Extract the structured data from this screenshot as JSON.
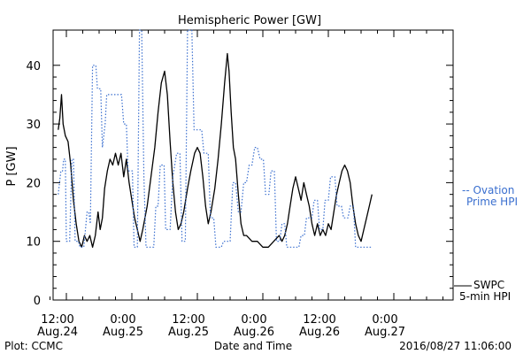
{
  "chart_data": {
    "type": "line",
    "title": "Hemispheric Power [GW]",
    "ylabel": "P [GW]",
    "xlabel": "Date and Time",
    "ylim": [
      0,
      46
    ],
    "yticks": [
      0,
      10,
      20,
      30,
      40
    ],
    "xlim": [
      10.5,
      66
    ],
    "xticks": [
      {
        "x": 12,
        "line1": "12:00",
        "line2": "Aug.24"
      },
      {
        "x": 24,
        "line1": "0:00",
        "line2": "Aug.25"
      },
      {
        "x": 36,
        "line1": "12:00",
        "line2": "Aug.25"
      },
      {
        "x": 48,
        "line1": "0:00",
        "line2": "Aug.26"
      },
      {
        "x": 60,
        "line1": "12:00",
        "line2": "Aug.26"
      },
      {
        "x": 72,
        "line1": "0:00",
        "line2": "Aug.27"
      }
    ],
    "legend": {
      "ovation_line1": "-- Ovation",
      "ovation_line2": "Prime HPI",
      "swpc_line1": "SWPC",
      "swpc_line2": "5-min HPI"
    },
    "footer": {
      "left": "Plot: CCMC",
      "center": "Date and Time",
      "right": "2016/08/27 11:06:00"
    },
    "series": [
      {
        "name": "SWPC 5-min HPI",
        "color": "#000000",
        "style": "solid",
        "points": [
          [
            10.5,
            29
          ],
          [
            10.8,
            31
          ],
          [
            11.1,
            35
          ],
          [
            11.4,
            30
          ],
          [
            11.8,
            28
          ],
          [
            12.3,
            27
          ],
          [
            12.8,
            23
          ],
          [
            13.3,
            17
          ],
          [
            13.8,
            13
          ],
          [
            14.3,
            10
          ],
          [
            14.8,
            9
          ],
          [
            15.3,
            11
          ],
          [
            15.8,
            10
          ],
          [
            16.3,
            11
          ],
          [
            16.8,
            9
          ],
          [
            17.3,
            11
          ],
          [
            17.8,
            15
          ],
          [
            18.2,
            12
          ],
          [
            18.6,
            14
          ],
          [
            19,
            19
          ],
          [
            19.5,
            22
          ],
          [
            20,
            24
          ],
          [
            20.5,
            23
          ],
          [
            21,
            25
          ],
          [
            21.5,
            23
          ],
          [
            22,
            25
          ],
          [
            22.5,
            21
          ],
          [
            23,
            24
          ],
          [
            23.5,
            20
          ],
          [
            24,
            17
          ],
          [
            24.5,
            14
          ],
          [
            25,
            12
          ],
          [
            25.5,
            10
          ],
          [
            26,
            12
          ],
          [
            26.8,
            16
          ],
          [
            27.5,
            21
          ],
          [
            28.2,
            26
          ],
          [
            28.8,
            32
          ],
          [
            29.4,
            37
          ],
          [
            30,
            39
          ],
          [
            30.5,
            35
          ],
          [
            31,
            27
          ],
          [
            31.5,
            20
          ],
          [
            32,
            15
          ],
          [
            32.5,
            12
          ],
          [
            33,
            13
          ],
          [
            33.5,
            15
          ],
          [
            34.2,
            19
          ],
          [
            34.8,
            22
          ],
          [
            35.5,
            25
          ],
          [
            36,
            26
          ],
          [
            36.5,
            25
          ],
          [
            37,
            21
          ],
          [
            37.5,
            16
          ],
          [
            38,
            13
          ],
          [
            38.5,
            15
          ],
          [
            39.2,
            19
          ],
          [
            39.8,
            24
          ],
          [
            40.4,
            30
          ],
          [
            41,
            37
          ],
          [
            41.5,
            42
          ],
          [
            41.8,
            39
          ],
          [
            42.2,
            32
          ],
          [
            42.6,
            26
          ],
          [
            43,
            24
          ],
          [
            43.5,
            18
          ],
          [
            44,
            13
          ],
          [
            44.5,
            11
          ],
          [
            45,
            11
          ],
          [
            46,
            10
          ],
          [
            47,
            10
          ],
          [
            48,
            9
          ],
          [
            49,
            9
          ],
          [
            50,
            10
          ],
          [
            51,
            11
          ],
          [
            51.5,
            10
          ],
          [
            52,
            11
          ],
          [
            52.5,
            13
          ],
          [
            53,
            16
          ],
          [
            53.5,
            19
          ],
          [
            54,
            21
          ],
          [
            54.5,
            19
          ],
          [
            55,
            17
          ],
          [
            55.5,
            20
          ],
          [
            56,
            18
          ],
          [
            56.5,
            16
          ],
          [
            57,
            13
          ],
          [
            57.5,
            11
          ],
          [
            58,
            13
          ],
          [
            58.5,
            11
          ],
          [
            59,
            12
          ],
          [
            59.5,
            11
          ],
          [
            60,
            13
          ],
          [
            60.5,
            12
          ],
          [
            61,
            15
          ],
          [
            61.5,
            18
          ],
          [
            62,
            20
          ],
          [
            62.5,
            22
          ],
          [
            63,
            23
          ],
          [
            63.5,
            22
          ],
          [
            64,
            20
          ],
          [
            64.5,
            16
          ],
          [
            65,
            13
          ],
          [
            65.5,
            11
          ],
          [
            66,
            10
          ],
          [
            66.5,
            12
          ],
          [
            67,
            14
          ],
          [
            67.5,
            16
          ],
          [
            68,
            18
          ]
        ]
      },
      {
        "name": "Ovation Prime HPI",
        "color": "#3a6fcf",
        "style": "dotted",
        "points": [
          [
            10.5,
            18
          ],
          [
            11,
            22
          ],
          [
            11.3,
            22
          ],
          [
            11.5,
            24
          ],
          [
            11.8,
            24
          ],
          [
            12,
            10
          ],
          [
            12.6,
            10
          ],
          [
            13,
            24
          ],
          [
            13.3,
            24
          ],
          [
            13.6,
            10
          ],
          [
            14.2,
            10
          ],
          [
            14.5,
            9
          ],
          [
            15.2,
            9
          ],
          [
            15.8,
            15
          ],
          [
            16.1,
            15
          ],
          [
            16.4,
            13
          ],
          [
            16.8,
            40
          ],
          [
            17.4,
            40
          ],
          [
            17.7,
            36
          ],
          [
            18.3,
            36
          ],
          [
            18.6,
            26
          ],
          [
            19.1,
            30
          ],
          [
            19.4,
            35
          ],
          [
            20.5,
            35
          ],
          [
            22.1,
            35
          ],
          [
            22.5,
            30
          ],
          [
            23,
            30
          ],
          [
            23.3,
            22
          ],
          [
            24.1,
            22
          ],
          [
            24.4,
            9
          ],
          [
            25,
            9
          ],
          [
            25.4,
            46
          ],
          [
            25.8,
            46
          ],
          [
            26.2,
            21
          ],
          [
            26.6,
            9
          ],
          [
            28,
            9
          ],
          [
            28.4,
            16
          ],
          [
            28.8,
            16
          ],
          [
            29.2,
            23
          ],
          [
            29.9,
            23
          ],
          [
            30.2,
            12
          ],
          [
            31,
            12
          ],
          [
            31.5,
            21
          ],
          [
            32.2,
            25
          ],
          [
            32.8,
            25
          ],
          [
            33.2,
            10
          ],
          [
            33.8,
            10
          ],
          [
            34.2,
            46
          ],
          [
            35,
            46
          ],
          [
            35.4,
            29
          ],
          [
            36.8,
            29
          ],
          [
            37.2,
            25
          ],
          [
            38,
            25
          ],
          [
            38.4,
            14
          ],
          [
            39,
            14
          ],
          [
            39.4,
            9
          ],
          [
            40.4,
            9
          ],
          [
            40.8,
            10
          ],
          [
            42,
            10
          ],
          [
            42.5,
            20
          ],
          [
            43,
            20
          ],
          [
            43.5,
            15
          ],
          [
            44,
            15
          ],
          [
            44.5,
            20
          ],
          [
            45,
            20
          ],
          [
            45.5,
            23
          ],
          [
            46,
            23
          ],
          [
            46.5,
            26
          ],
          [
            47,
            26
          ],
          [
            47.5,
            24
          ],
          [
            48.1,
            24
          ],
          [
            48.5,
            18
          ],
          [
            49.1,
            18
          ],
          [
            49.5,
            22
          ],
          [
            50.1,
            22
          ],
          [
            50.5,
            10
          ],
          [
            51.1,
            10
          ],
          [
            51.5,
            13
          ],
          [
            52,
            13
          ],
          [
            52.4,
            9
          ],
          [
            54.6,
            9
          ],
          [
            55,
            11
          ],
          [
            55.6,
            11
          ],
          [
            56,
            14
          ],
          [
            57,
            14
          ],
          [
            57.4,
            17
          ],
          [
            58,
            17
          ],
          [
            58.4,
            12
          ],
          [
            59,
            12
          ],
          [
            59.4,
            17
          ],
          [
            60,
            17
          ],
          [
            60.4,
            21
          ],
          [
            61.2,
            21
          ],
          [
            61.6,
            16
          ],
          [
            62.4,
            16
          ],
          [
            62.8,
            14
          ],
          [
            63.6,
            14
          ],
          [
            64,
            16
          ],
          [
            64.6,
            16
          ],
          [
            65,
            9
          ],
          [
            68,
            9
          ]
        ]
      }
    ]
  }
}
